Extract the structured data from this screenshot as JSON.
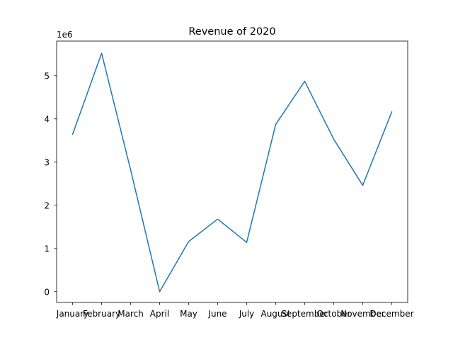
{
  "chart_data": {
    "type": "line",
    "title": "Revenue of 2020",
    "xlabel": "",
    "ylabel": "",
    "y_offset_label": "1e6",
    "categories": [
      "January",
      "February",
      "March",
      "April",
      "May",
      "June",
      "July",
      "August",
      "September",
      "October",
      "November",
      "December"
    ],
    "series": [
      {
        "values": [
          3640000,
          5520000,
          2820000,
          0,
          1160000,
          1680000,
          1140000,
          3870000,
          4870000,
          3530000,
          2460000,
          4160000
        ],
        "color": "#1f77b4"
      }
    ],
    "ylim": [
      -250000,
      5800000
    ],
    "y_ticks": [
      0,
      1000000,
      2000000,
      3000000,
      4000000,
      5000000
    ],
    "y_tick_labels": [
      "0",
      "1",
      "2",
      "3",
      "4",
      "5"
    ],
    "grid": false,
    "legend": "none"
  }
}
